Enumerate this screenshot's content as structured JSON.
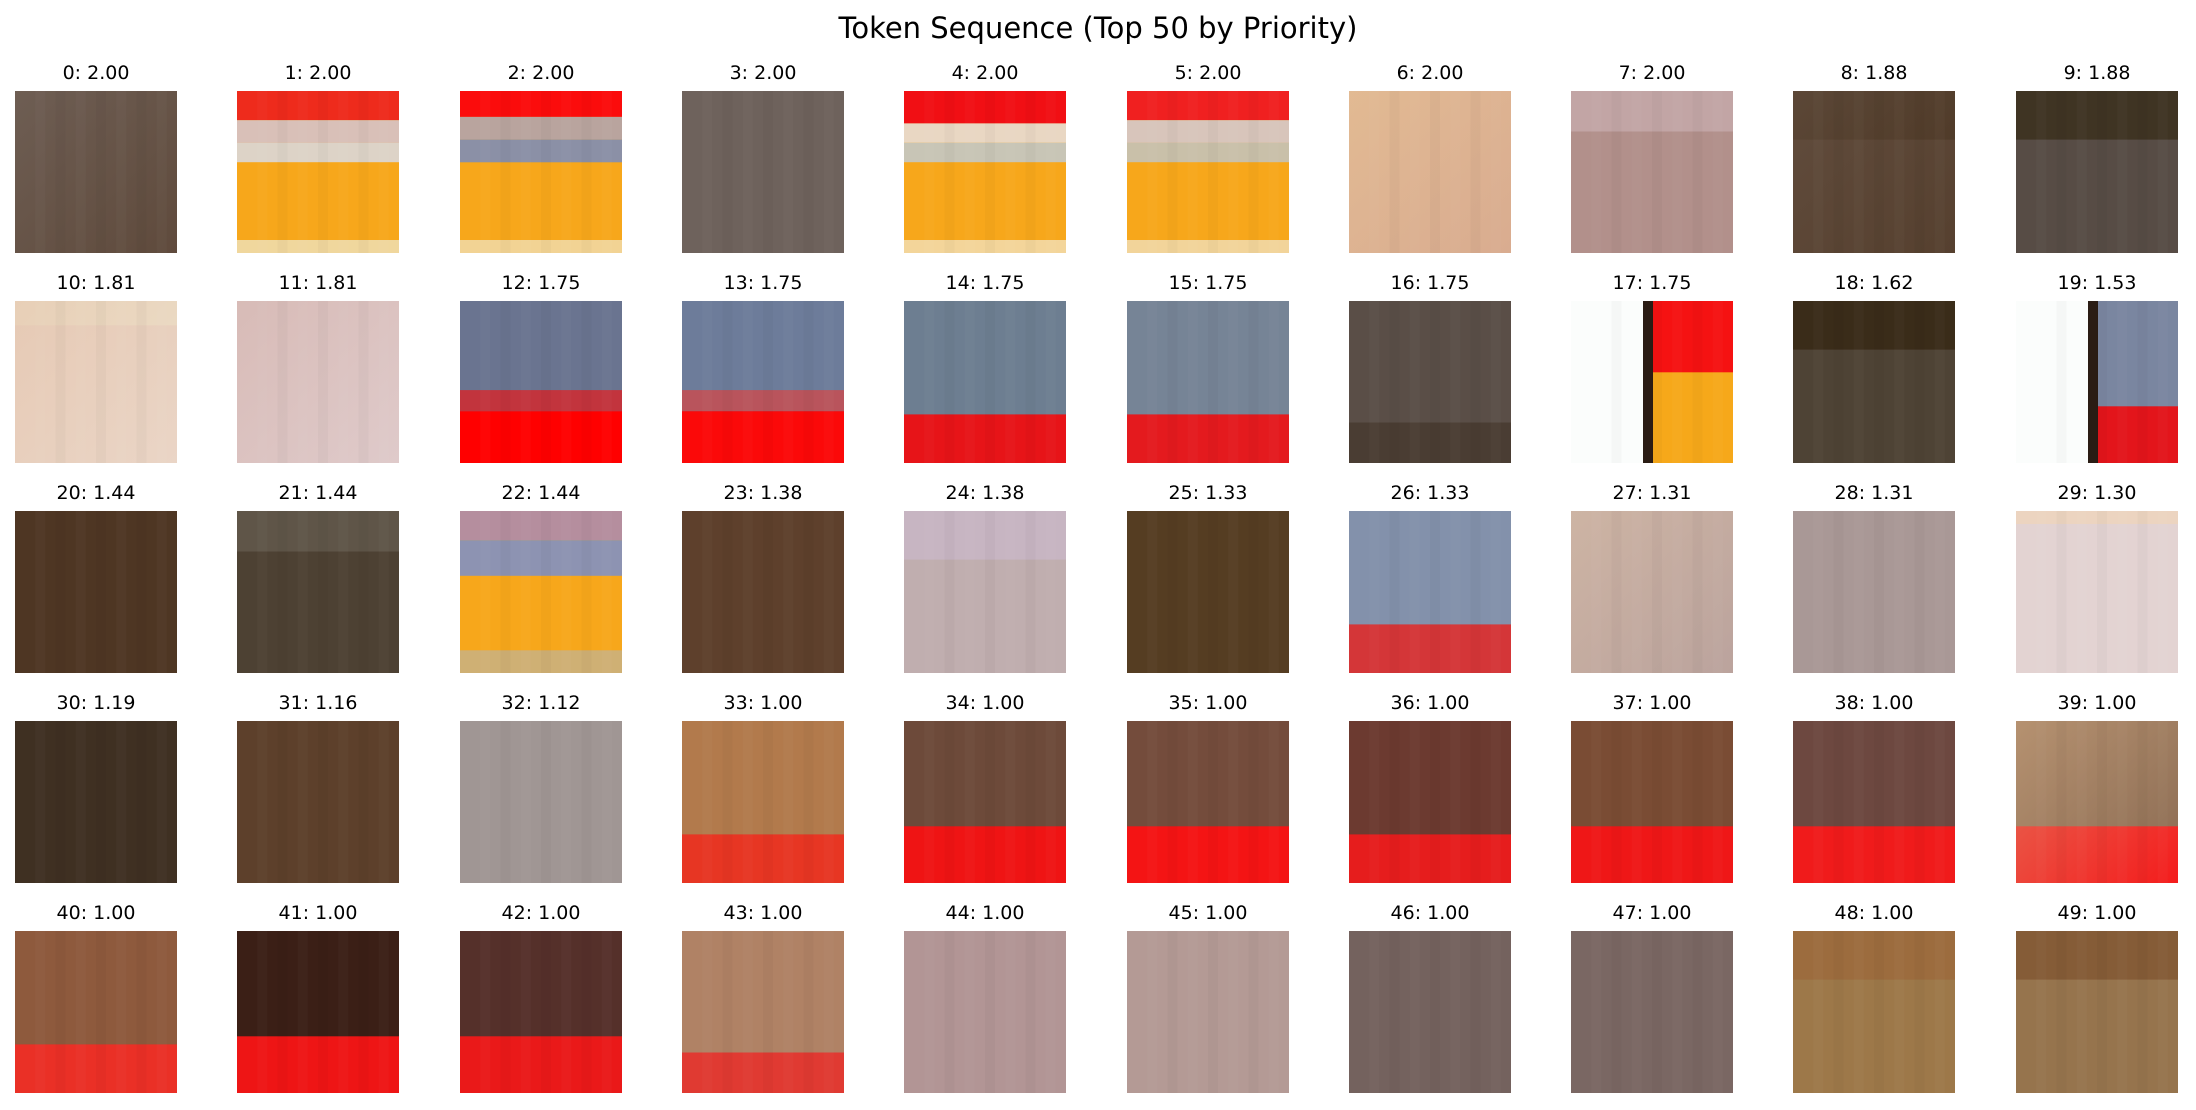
{
  "title": "Token Sequence (Top 50 by Priority)",
  "tokens": [
    {
      "label": "0: 2.00",
      "base": "#5f4a3c",
      "bands": [],
      "lighten": "#7a6e66"
    },
    {
      "label": "1: 2.00",
      "base": "#f7a71b",
      "bands": [
        [
          0,
          0.18,
          "#ee2b1c"
        ],
        [
          0.18,
          0.32,
          "#d9c0b8"
        ],
        [
          0.32,
          0.44,
          "#ddd3c7"
        ],
        [
          0.92,
          1,
          "#f0d79d"
        ]
      ]
    },
    {
      "label": "2: 2.00",
      "base": "#f7a71b",
      "bands": [
        [
          0,
          0.16,
          "#fb0c0c"
        ],
        [
          0.16,
          0.3,
          "#b9a49e"
        ],
        [
          0.3,
          0.44,
          "#8b90a6"
        ],
        [
          0.92,
          1,
          "#f2d394"
        ]
      ]
    },
    {
      "label": "3: 2.00",
      "base": "#6e625c",
      "bands": []
    },
    {
      "label": "4: 2.00",
      "base": "#f7a71b",
      "bands": [
        [
          0,
          0.2,
          "#f10f14"
        ],
        [
          0.2,
          0.32,
          "#e9d7c3"
        ],
        [
          0.32,
          0.44,
          "#c8c5b6"
        ],
        [
          0.92,
          1,
          "#f3d59a"
        ]
      ]
    },
    {
      "label": "5: 2.00",
      "base": "#f7a71b",
      "bands": [
        [
          0,
          0.18,
          "#f02020"
        ],
        [
          0.18,
          0.32,
          "#d8c5bb"
        ],
        [
          0.32,
          0.44,
          "#c9c0a9"
        ],
        [
          0.92,
          1,
          "#f2d49a"
        ]
      ]
    },
    {
      "label": "6: 2.00",
      "base": "#d9ac90",
      "bands": [],
      "lighten": "#e9c595"
    },
    {
      "label": "7: 2.00",
      "base": "#b2908b",
      "bands": [
        [
          0,
          0.25,
          "#c2a5a5"
        ]
      ]
    },
    {
      "label": "8: 1.88",
      "base": "#56402f",
      "bands": [
        [
          0,
          0.3,
          "#4a3522"
        ]
      ],
      "lighten": "#6a5648"
    },
    {
      "label": "9: 1.88",
      "base": "#574c45",
      "bands": [
        [
          0,
          0.3,
          "#3f3423"
        ]
      ]
    },
    {
      "label": "10: 1.81",
      "base": "#ead5c6",
      "bands": [
        [
          0,
          0.15,
          "#ede1cb"
        ]
      ],
      "lighten": "#e3c0a6"
    },
    {
      "label": "11: 1.81",
      "base": "#dfcaca",
      "bands": [],
      "lighten": "#d2afa7"
    },
    {
      "label": "12: 1.75",
      "base": "#6a7490",
      "bands": [
        [
          0.55,
          0.68,
          "#c2343d"
        ],
        [
          0.68,
          1,
          "#ff0000"
        ]
      ]
    },
    {
      "label": "13: 1.75",
      "base": "#6d7c9a",
      "bands": [
        [
          0.55,
          0.68,
          "#b9545c"
        ],
        [
          0.68,
          1,
          "#fb0909"
        ]
      ]
    },
    {
      "label": "14: 1.75",
      "base": "#6d7e91",
      "bands": [
        [
          0.7,
          1,
          "#e71418"
        ]
      ]
    },
    {
      "label": "15: 1.75",
      "base": "#768496",
      "bands": [
        [
          0.7,
          1,
          "#e41a1e"
        ]
      ]
    },
    {
      "label": "16: 1.75",
      "base": "#5a4e47",
      "bands": [
        [
          0.75,
          1,
          "#4a3d33"
        ]
      ]
    },
    {
      "label": "17: 1.75",
      "base": "#f6a81a",
      "bands": [
        [
          0,
          0.44,
          "#f51212"
        ]
      ],
      "left_white": true
    },
    {
      "label": "18: 1.62",
      "base": "#4e4335",
      "bands": [
        [
          0,
          0.3,
          "#3a2c19"
        ]
      ]
    },
    {
      "label": "19: 1.53",
      "base": "#7a86a0",
      "bands": [
        [
          0.65,
          1,
          "#e3151b"
        ]
      ],
      "left_white": true
    },
    {
      "label": "20: 1.44",
      "base": "#4e3623",
      "bands": []
    },
    {
      "label": "21: 1.44",
      "base": "#4d4133",
      "bands": [
        [
          0,
          0.25,
          "#5f5548"
        ]
      ]
    },
    {
      "label": "22: 1.44",
      "base": "#f7a71b",
      "bands": [
        [
          0,
          0.18,
          "#b58e9e"
        ],
        [
          0.18,
          0.4,
          "#8d93b2"
        ],
        [
          0.86,
          1,
          "#cfb074"
        ]
      ]
    },
    {
      "label": "23: 1.38",
      "base": "#5e402c",
      "bands": []
    },
    {
      "label": "24: 1.38",
      "base": "#c0aeaf",
      "bands": [
        [
          0,
          0.3,
          "#c7b5c2"
        ]
      ]
    },
    {
      "label": "25: 1.33",
      "base": "#553d22",
      "bands": []
    },
    {
      "label": "26: 1.33",
      "base": "#8391ab",
      "bands": [
        [
          0.7,
          1,
          "#d43638"
        ]
      ]
    },
    {
      "label": "27: 1.31",
      "base": "#bba39d",
      "bands": [],
      "lighten": "#dcc2a9"
    },
    {
      "label": "28: 1.31",
      "base": "#a99896",
      "bands": []
    },
    {
      "label": "29: 1.30",
      "base": "#e3d3d2",
      "bands": [
        [
          0,
          0.08,
          "#ecd4c0"
        ]
      ]
    },
    {
      "label": "30: 1.19",
      "base": "#3f3022",
      "bands": []
    },
    {
      "label": "31: 1.16",
      "base": "#5d402b",
      "bands": []
    },
    {
      "label": "32: 1.12",
      "base": "#a09694",
      "bands": []
    },
    {
      "label": "33: 1.00",
      "base": "#b27a4c",
      "bands": [
        [
          0.7,
          1,
          "#e73623"
        ]
      ]
    },
    {
      "label": "34: 1.00",
      "base": "#6d4a3a",
      "bands": [
        [
          0.65,
          1,
          "#ef1414"
        ]
      ]
    },
    {
      "label": "35: 1.00",
      "base": "#744c3c",
      "bands": [
        [
          0.65,
          1,
          "#f41414"
        ]
      ]
    },
    {
      "label": "36: 1.00",
      "base": "#6c3a30",
      "bands": [
        [
          0.7,
          1,
          "#e61d1d"
        ]
      ]
    },
    {
      "label": "37: 1.00",
      "base": "#7a4c34",
      "bands": [
        [
          0.65,
          1,
          "#ef1717"
        ]
      ]
    },
    {
      "label": "38: 1.00",
      "base": "#6d4840",
      "bands": [
        [
          0.65,
          1,
          "#f01b1b"
        ]
      ]
    },
    {
      "label": "39: 1.00",
      "base": "#8a6a52",
      "bands": [
        [
          0.65,
          1,
          "#f41c1c"
        ]
      ],
      "lighten": "#d9b289"
    },
    {
      "label": "40: 1.00",
      "base": "#8e5a3d",
      "bands": [
        [
          0.7,
          1,
          "#ea3026"
        ]
      ]
    },
    {
      "label": "41: 1.00",
      "base": "#3b1f16",
      "bands": [
        [
          0.65,
          1,
          "#ee1515"
        ]
      ]
    },
    {
      "label": "42: 1.00",
      "base": "#55302a",
      "bands": [
        [
          0.65,
          1,
          "#ea1919"
        ]
      ]
    },
    {
      "label": "43: 1.00",
      "base": "#b08265",
      "bands": [
        [
          0.75,
          1,
          "#e03a32"
        ]
      ]
    },
    {
      "label": "44: 1.00",
      "base": "#b29595",
      "bands": []
    },
    {
      "label": "45: 1.00",
      "base": "#b49a95",
      "bands": []
    },
    {
      "label": "46: 1.00",
      "base": "#74625e",
      "bands": []
    },
    {
      "label": "47: 1.00",
      "base": "#7a6763",
      "bands": []
    },
    {
      "label": "48: 1.00",
      "base": "#9d7849",
      "bands": [
        [
          0,
          0.3,
          "#9c6c3e"
        ]
      ]
    },
    {
      "label": "49: 1.00",
      "base": "#96744d",
      "bands": [
        [
          0,
          0.3,
          "#855c37"
        ]
      ]
    }
  ]
}
